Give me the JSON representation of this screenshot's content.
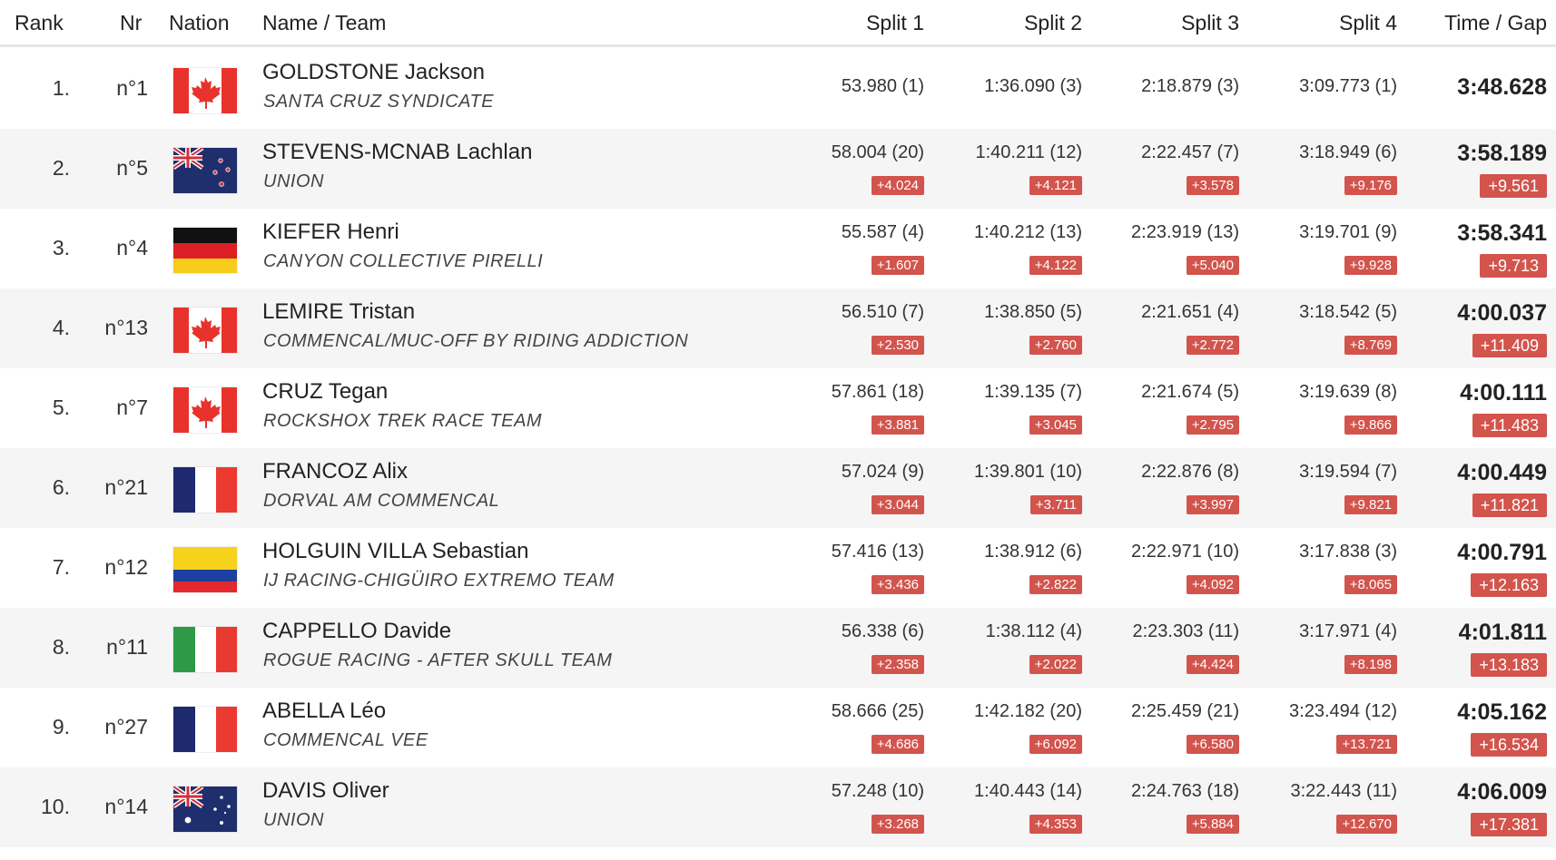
{
  "header": {
    "rank": "Rank",
    "nr": "Nr",
    "nation": "Nation",
    "name_team": "Name / Team",
    "split1": "Split 1",
    "split2": "Split 2",
    "split3": "Split 3",
    "split4": "Split 4",
    "time_gap": "Time / Gap"
  },
  "colors": {
    "gap_badge": "#d2544c",
    "row_alt": "#f5f5f5",
    "header_rule": "#e5e5e5"
  },
  "rows": [
    {
      "rank": "1.",
      "nr": "n°1",
      "nation_flag": "canada-flag",
      "name": "GOLDSTONE Jackson",
      "team": "SANTA CRUZ SYNDICATE",
      "splits": [
        "53.980 (1)",
        "1:36.090 (3)",
        "2:18.879 (3)",
        "3:09.773 (1)"
      ],
      "split_gaps": [],
      "time": "3:48.628",
      "gap": ""
    },
    {
      "rank": "2.",
      "nr": "n°5",
      "nation_flag": "new-zealand-flag",
      "name": "STEVENS-MCNAB Lachlan",
      "team": "UNION",
      "splits": [
        "58.004 (20)",
        "1:40.211 (12)",
        "2:22.457 (7)",
        "3:18.949 (6)"
      ],
      "split_gaps": [
        "+4.024",
        "+4.121",
        "+3.578",
        "+9.176"
      ],
      "time": "3:58.189",
      "gap": "+9.561"
    },
    {
      "rank": "3.",
      "nr": "n°4",
      "nation_flag": "germany-flag",
      "name": "KIEFER Henri",
      "team": "CANYON COLLECTIVE PIRELLI",
      "splits": [
        "55.587 (4)",
        "1:40.212 (13)",
        "2:23.919 (13)",
        "3:19.701 (9)"
      ],
      "split_gaps": [
        "+1.607",
        "+4.122",
        "+5.040",
        "+9.928"
      ],
      "time": "3:58.341",
      "gap": "+9.713"
    },
    {
      "rank": "4.",
      "nr": "n°13",
      "nation_flag": "canada-flag",
      "name": "LEMIRE Tristan",
      "team": "COMMENCAL/MUC-OFF BY RIDING ADDICTION",
      "splits": [
        "56.510 (7)",
        "1:38.850 (5)",
        "2:21.651 (4)",
        "3:18.542 (5)"
      ],
      "split_gaps": [
        "+2.530",
        "+2.760",
        "+2.772",
        "+8.769"
      ],
      "time": "4:00.037",
      "gap": "+11.409"
    },
    {
      "rank": "5.",
      "nr": "n°7",
      "nation_flag": "canada-flag",
      "name": "CRUZ Tegan",
      "team": "ROCKSHOX TREK RACE TEAM",
      "splits": [
        "57.861 (18)",
        "1:39.135 (7)",
        "2:21.674 (5)",
        "3:19.639 (8)"
      ],
      "split_gaps": [
        "+3.881",
        "+3.045",
        "+2.795",
        "+9.866"
      ],
      "time": "4:00.111",
      "gap": "+11.483"
    },
    {
      "rank": "6.",
      "nr": "n°21",
      "nation_flag": "france-flag",
      "name": "FRANCOZ Alix",
      "team": "DORVAL AM COMMENCAL",
      "splits": [
        "57.024 (9)",
        "1:39.801 (10)",
        "2:22.876 (8)",
        "3:19.594 (7)"
      ],
      "split_gaps": [
        "+3.044",
        "+3.711",
        "+3.997",
        "+9.821"
      ],
      "time": "4:00.449",
      "gap": "+11.821"
    },
    {
      "rank": "7.",
      "nr": "n°12",
      "nation_flag": "colombia-flag",
      "name": "HOLGUIN VILLA Sebastian",
      "team": "IJ RACING-CHIGÜIRO EXTREMO TEAM",
      "splits": [
        "57.416 (13)",
        "1:38.912 (6)",
        "2:22.971 (10)",
        "3:17.838 (3)"
      ],
      "split_gaps": [
        "+3.436",
        "+2.822",
        "+4.092",
        "+8.065"
      ],
      "time": "4:00.791",
      "gap": "+12.163"
    },
    {
      "rank": "8.",
      "nr": "n°11",
      "nation_flag": "italy-flag",
      "name": "CAPPELLO Davide",
      "team": "ROGUE RACING - AFTER SKULL TEAM",
      "splits": [
        "56.338 (6)",
        "1:38.112 (4)",
        "2:23.303 (11)",
        "3:17.971 (4)"
      ],
      "split_gaps": [
        "+2.358",
        "+2.022",
        "+4.424",
        "+8.198"
      ],
      "time": "4:01.811",
      "gap": "+13.183"
    },
    {
      "rank": "9.",
      "nr": "n°27",
      "nation_flag": "france-flag",
      "name": "ABELLA Léo",
      "team": "COMMENCAL VEE",
      "splits": [
        "58.666 (25)",
        "1:42.182 (20)",
        "2:25.459 (21)",
        "3:23.494 (12)"
      ],
      "split_gaps": [
        "+4.686",
        "+6.092",
        "+6.580",
        "+13.721"
      ],
      "time": "4:05.162",
      "gap": "+16.534"
    },
    {
      "rank": "10.",
      "nr": "n°14",
      "nation_flag": "australia-flag",
      "name": "DAVIS Oliver",
      "team": "UNION",
      "splits": [
        "57.248 (10)",
        "1:40.443 (14)",
        "2:24.763 (18)",
        "3:22.443 (11)"
      ],
      "split_gaps": [
        "+3.268",
        "+4.353",
        "+5.884",
        "+12.670"
      ],
      "time": "4:06.009",
      "gap": "+17.381"
    }
  ]
}
